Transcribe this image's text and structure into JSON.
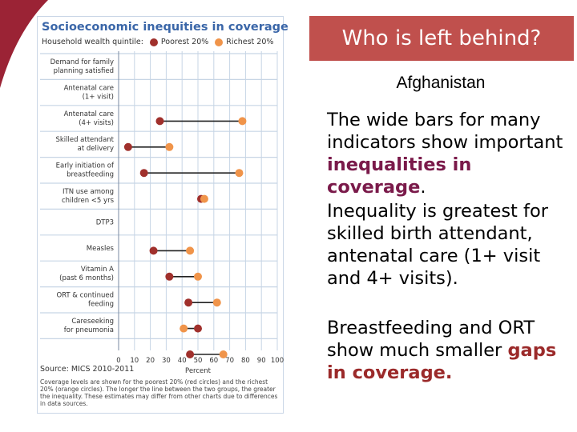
{
  "banner": {
    "title": "Who is left behind?"
  },
  "country": "Afghanistan",
  "paragraphs": {
    "p1_a": "The wide bars for many indicators show important ",
    "p1_b": "inequalities in coverage",
    "p1_c": ".",
    "p2": "Inequality is greatest for skilled birth attendant, antenatal care (1+ visit and 4+ visits).",
    "p3_a": "Breastfeeding and ORT show much smaller ",
    "p3_b": "gaps in coverage."
  },
  "source": "Source: MICS 2010-2011",
  "note": "Coverage levels are shown for the poorest 20% (red circles) and the richest 20% (orange circles). The longer the line between the two groups, the greater the inequality. These estimates may differ from other charts due to differences in data sources.",
  "chart_data": {
    "type": "dumbbell",
    "title": "Socioeconomic inequities in coverage",
    "legend_label": "Household wealth quintile:",
    "xlabel": "Percent",
    "xlim": [
      0,
      100
    ],
    "xticks": [
      0,
      10,
      20,
      30,
      40,
      50,
      60,
      70,
      80,
      90,
      100
    ],
    "grid": true,
    "series": [
      {
        "name": "Poorest 20%",
        "color": "#a0302c"
      },
      {
        "name": "Richest 20%",
        "color": "#f0944a"
      }
    ],
    "indicators": [
      {
        "label": [
          "Demand for family",
          "planning satisfied"
        ],
        "poorest": null,
        "richest": null
      },
      {
        "label": [
          "Antenatal care",
          "(1+ visit)"
        ],
        "poorest": 26,
        "richest": 78
      },
      {
        "label": [
          "Antenatal care",
          "(4+ visits)"
        ],
        "poorest": 6,
        "richest": 32
      },
      {
        "label": [
          "Skilled attendant",
          "at delivery"
        ],
        "poorest": 16,
        "richest": 76
      },
      {
        "label": [
          "Early initiation of",
          "breastfeeding"
        ],
        "poorest": 52,
        "richest": 54
      },
      {
        "label": [
          "ITN use among",
          "children <5 yrs"
        ],
        "poorest": null,
        "richest": null
      },
      {
        "label": [
          "DTP3"
        ],
        "poorest": 22,
        "richest": 45
      },
      {
        "label": [
          "Measles"
        ],
        "poorest": 32,
        "richest": 50
      },
      {
        "label": [
          "Vitamin A",
          "(past 6 months)"
        ],
        "poorest": 44,
        "richest": 62
      },
      {
        "label": [
          "ORT & continued",
          "feeding"
        ],
        "poorest": 50,
        "richest": 41
      },
      {
        "label": [
          "Careseeking",
          "for pneumonia"
        ],
        "poorest": 45,
        "richest": 66
      }
    ]
  }
}
